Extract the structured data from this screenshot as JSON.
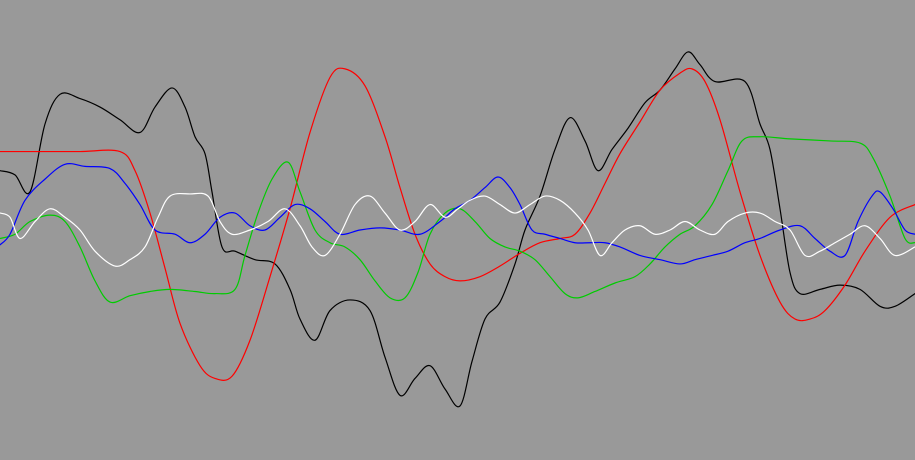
{
  "chart_data": {
    "type": "line",
    "title": "",
    "xlabel": "",
    "ylabel": "",
    "grid": false,
    "legend": "none",
    "background": "#999999",
    "xlim": [
      0,
      915
    ],
    "ylim": [
      -1,
      1
    ],
    "series": [
      {
        "color": "#000000",
        "points": [
          [
            0,
            0.28
          ],
          [
            15,
            0.26
          ],
          [
            30,
            0.18
          ],
          [
            45,
            0.5
          ],
          [
            60,
            0.64
          ],
          [
            80,
            0.62
          ],
          [
            100,
            0.58
          ],
          [
            120,
            0.52
          ],
          [
            140,
            0.46
          ],
          [
            155,
            0.58
          ],
          [
            172,
            0.67
          ],
          [
            185,
            0.58
          ],
          [
            195,
            0.44
          ],
          [
            205,
            0.36
          ],
          [
            212,
            0.18
          ],
          [
            222,
            -0.08
          ],
          [
            235,
            -0.1
          ],
          [
            255,
            -0.14
          ],
          [
            275,
            -0.16
          ],
          [
            290,
            -0.28
          ],
          [
            300,
            -0.42
          ],
          [
            315,
            -0.52
          ],
          [
            330,
            -0.38
          ],
          [
            350,
            -0.33
          ],
          [
            370,
            -0.38
          ],
          [
            385,
            -0.6
          ],
          [
            400,
            -0.78
          ],
          [
            415,
            -0.7
          ],
          [
            430,
            -0.64
          ],
          [
            445,
            -0.75
          ],
          [
            460,
            -0.83
          ],
          [
            472,
            -0.62
          ],
          [
            485,
            -0.42
          ],
          [
            500,
            -0.34
          ],
          [
            515,
            -0.16
          ],
          [
            525,
            0.0
          ],
          [
            540,
            0.16
          ],
          [
            555,
            0.38
          ],
          [
            570,
            0.53
          ],
          [
            585,
            0.42
          ],
          [
            598,
            0.28
          ],
          [
            612,
            0.38
          ],
          [
            628,
            0.48
          ],
          [
            645,
            0.6
          ],
          [
            660,
            0.66
          ],
          [
            675,
            0.76
          ],
          [
            688,
            0.84
          ],
          [
            700,
            0.78
          ],
          [
            715,
            0.7
          ],
          [
            745,
            0.7
          ],
          [
            760,
            0.5
          ],
          [
            770,
            0.38
          ],
          [
            780,
            0.1
          ],
          [
            790,
            -0.2
          ],
          [
            800,
            -0.3
          ],
          [
            820,
            -0.28
          ],
          [
            840,
            -0.26
          ],
          [
            860,
            -0.28
          ],
          [
            880,
            -0.36
          ],
          [
            895,
            -0.36
          ],
          [
            915,
            -0.3
          ]
        ]
      },
      {
        "color": "#ff0000",
        "points": [
          [
            0,
            0.37
          ],
          [
            40,
            0.37
          ],
          [
            80,
            0.37
          ],
          [
            120,
            0.37
          ],
          [
            135,
            0.28
          ],
          [
            150,
            0.08
          ],
          [
            165,
            -0.18
          ],
          [
            180,
            -0.44
          ],
          [
            200,
            -0.64
          ],
          [
            215,
            -0.7
          ],
          [
            232,
            -0.69
          ],
          [
            250,
            -0.52
          ],
          [
            270,
            -0.22
          ],
          [
            290,
            0.1
          ],
          [
            310,
            0.46
          ],
          [
            330,
            0.72
          ],
          [
            345,
            0.76
          ],
          [
            365,
            0.68
          ],
          [
            385,
            0.44
          ],
          [
            400,
            0.2
          ],
          [
            415,
            -0.02
          ],
          [
            430,
            -0.16
          ],
          [
            445,
            -0.22
          ],
          [
            460,
            -0.24
          ],
          [
            480,
            -0.22
          ],
          [
            500,
            -0.17
          ],
          [
            520,
            -0.11
          ],
          [
            540,
            -0.06
          ],
          [
            560,
            -0.04
          ],
          [
            575,
            -0.02
          ],
          [
            590,
            0.08
          ],
          [
            605,
            0.22
          ],
          [
            620,
            0.36
          ],
          [
            640,
            0.51
          ],
          [
            660,
            0.66
          ],
          [
            680,
            0.74
          ],
          [
            692,
            0.76
          ],
          [
            705,
            0.7
          ],
          [
            720,
            0.52
          ],
          [
            740,
            0.18
          ],
          [
            760,
            -0.12
          ],
          [
            780,
            -0.34
          ],
          [
            795,
            -0.42
          ],
          [
            810,
            -0.42
          ],
          [
            825,
            -0.38
          ],
          [
            845,
            -0.26
          ],
          [
            865,
            -0.1
          ],
          [
            890,
            0.06
          ],
          [
            915,
            0.12
          ]
        ]
      },
      {
        "color": "#00cc00",
        "points": [
          [
            0,
            -0.04
          ],
          [
            15,
            -0.02
          ],
          [
            30,
            0.04
          ],
          [
            50,
            0.07
          ],
          [
            65,
            0.04
          ],
          [
            80,
            -0.08
          ],
          [
            95,
            -0.24
          ],
          [
            110,
            -0.34
          ],
          [
            130,
            -0.31
          ],
          [
            150,
            -0.29
          ],
          [
            170,
            -0.28
          ],
          [
            195,
            -0.29
          ],
          [
            215,
            -0.3
          ],
          [
            235,
            -0.28
          ],
          [
            245,
            -0.12
          ],
          [
            258,
            0.08
          ],
          [
            272,
            0.24
          ],
          [
            288,
            0.32
          ],
          [
            300,
            0.18
          ],
          [
            315,
            0.0
          ],
          [
            330,
            -0.06
          ],
          [
            345,
            -0.08
          ],
          [
            360,
            -0.14
          ],
          [
            375,
            -0.24
          ],
          [
            390,
            -0.32
          ],
          [
            405,
            -0.32
          ],
          [
            418,
            -0.2
          ],
          [
            430,
            -0.02
          ],
          [
            445,
            0.08
          ],
          [
            460,
            0.1
          ],
          [
            475,
            0.04
          ],
          [
            490,
            -0.04
          ],
          [
            505,
            -0.08
          ],
          [
            520,
            -0.1
          ],
          [
            535,
            -0.14
          ],
          [
            550,
            -0.22
          ],
          [
            565,
            -0.3
          ],
          [
            578,
            -0.32
          ],
          [
            595,
            -0.29
          ],
          [
            615,
            -0.25
          ],
          [
            635,
            -0.22
          ],
          [
            650,
            -0.16
          ],
          [
            665,
            -0.08
          ],
          [
            680,
            -0.02
          ],
          [
            695,
            0.02
          ],
          [
            712,
            0.12
          ],
          [
            728,
            0.28
          ],
          [
            742,
            0.42
          ],
          [
            760,
            0.44
          ],
          [
            790,
            0.43
          ],
          [
            830,
            0.42
          ],
          [
            860,
            0.41
          ],
          [
            873,
            0.34
          ],
          [
            890,
            0.16
          ],
          [
            905,
            -0.04
          ],
          [
            915,
            -0.06
          ]
        ]
      },
      {
        "color": "#0000ff",
        "points": [
          [
            0,
            -0.07
          ],
          [
            10,
            -0.02
          ],
          [
            25,
            0.14
          ],
          [
            45,
            0.24
          ],
          [
            65,
            0.31
          ],
          [
            85,
            0.3
          ],
          [
            110,
            0.29
          ],
          [
            125,
            0.22
          ],
          [
            140,
            0.12
          ],
          [
            155,
            0.0
          ],
          [
            175,
            -0.02
          ],
          [
            190,
            -0.06
          ],
          [
            205,
            -0.02
          ],
          [
            220,
            0.06
          ],
          [
            235,
            0.08
          ],
          [
            250,
            0.02
          ],
          [
            265,
            0.0
          ],
          [
            280,
            0.06
          ],
          [
            295,
            0.12
          ],
          [
            310,
            0.1
          ],
          [
            325,
            0.04
          ],
          [
            340,
            -0.02
          ],
          [
            360,
            0.0
          ],
          [
            380,
            0.01
          ],
          [
            400,
            0.0
          ],
          [
            420,
            -0.02
          ],
          [
            440,
            0.04
          ],
          [
            455,
            0.1
          ],
          [
            470,
            0.14
          ],
          [
            485,
            0.2
          ],
          [
            498,
            0.25
          ],
          [
            510,
            0.2
          ],
          [
            520,
            0.12
          ],
          [
            532,
            0.0
          ],
          [
            545,
            -0.02
          ],
          [
            560,
            -0.04
          ],
          [
            575,
            -0.06
          ],
          [
            590,
            -0.06
          ],
          [
            605,
            -0.06
          ],
          [
            620,
            -0.08
          ],
          [
            640,
            -0.12
          ],
          [
            660,
            -0.14
          ],
          [
            680,
            -0.16
          ],
          [
            695,
            -0.14
          ],
          [
            712,
            -0.12
          ],
          [
            728,
            -0.1
          ],
          [
            745,
            -0.06
          ],
          [
            760,
            -0.04
          ],
          [
            780,
            0.0
          ],
          [
            800,
            0.02
          ],
          [
            815,
            -0.04
          ],
          [
            830,
            -0.1
          ],
          [
            845,
            -0.12
          ],
          [
            858,
            0.04
          ],
          [
            872,
            0.16
          ],
          [
            880,
            0.18
          ],
          [
            893,
            0.1
          ],
          [
            905,
            0.0
          ],
          [
            915,
            -0.02
          ]
        ]
      },
      {
        "color": "#ffffff",
        "points": [
          [
            0,
            0.08
          ],
          [
            10,
            0.06
          ],
          [
            20,
            -0.04
          ],
          [
            35,
            0.04
          ],
          [
            50,
            0.1
          ],
          [
            65,
            0.06
          ],
          [
            80,
            0.0
          ],
          [
            95,
            -0.1
          ],
          [
            115,
            -0.17
          ],
          [
            130,
            -0.14
          ],
          [
            145,
            -0.08
          ],
          [
            158,
            0.06
          ],
          [
            170,
            0.16
          ],
          [
            190,
            0.17
          ],
          [
            208,
            0.16
          ],
          [
            220,
            0.04
          ],
          [
            232,
            -0.02
          ],
          [
            250,
            0.0
          ],
          [
            268,
            0.04
          ],
          [
            285,
            0.1
          ],
          [
            300,
            0.02
          ],
          [
            312,
            -0.08
          ],
          [
            325,
            -0.12
          ],
          [
            340,
            -0.02
          ],
          [
            355,
            0.12
          ],
          [
            370,
            0.16
          ],
          [
            385,
            0.08
          ],
          [
            400,
            0.0
          ],
          [
            415,
            0.04
          ],
          [
            430,
            0.12
          ],
          [
            445,
            0.06
          ],
          [
            458,
            0.1
          ],
          [
            470,
            0.14
          ],
          [
            485,
            0.16
          ],
          [
            500,
            0.12
          ],
          [
            515,
            0.08
          ],
          [
            530,
            0.12
          ],
          [
            545,
            0.16
          ],
          [
            560,
            0.14
          ],
          [
            575,
            0.08
          ],
          [
            588,
            0.0
          ],
          [
            600,
            -0.12
          ],
          [
            612,
            -0.06
          ],
          [
            625,
            0.0
          ],
          [
            640,
            0.02
          ],
          [
            655,
            -0.02
          ],
          [
            670,
            0.0
          ],
          [
            685,
            0.04
          ],
          [
            700,
            0.0
          ],
          [
            715,
            -0.02
          ],
          [
            728,
            0.04
          ],
          [
            745,
            0.08
          ],
          [
            760,
            0.08
          ],
          [
            775,
            0.04
          ],
          [
            790,
            0.0
          ],
          [
            805,
            -0.12
          ],
          [
            820,
            -0.1
          ],
          [
            835,
            -0.06
          ],
          [
            850,
            -0.02
          ],
          [
            865,
            0.02
          ],
          [
            880,
            -0.04
          ],
          [
            895,
            -0.12
          ],
          [
            915,
            -0.08
          ]
        ]
      }
    ]
  }
}
